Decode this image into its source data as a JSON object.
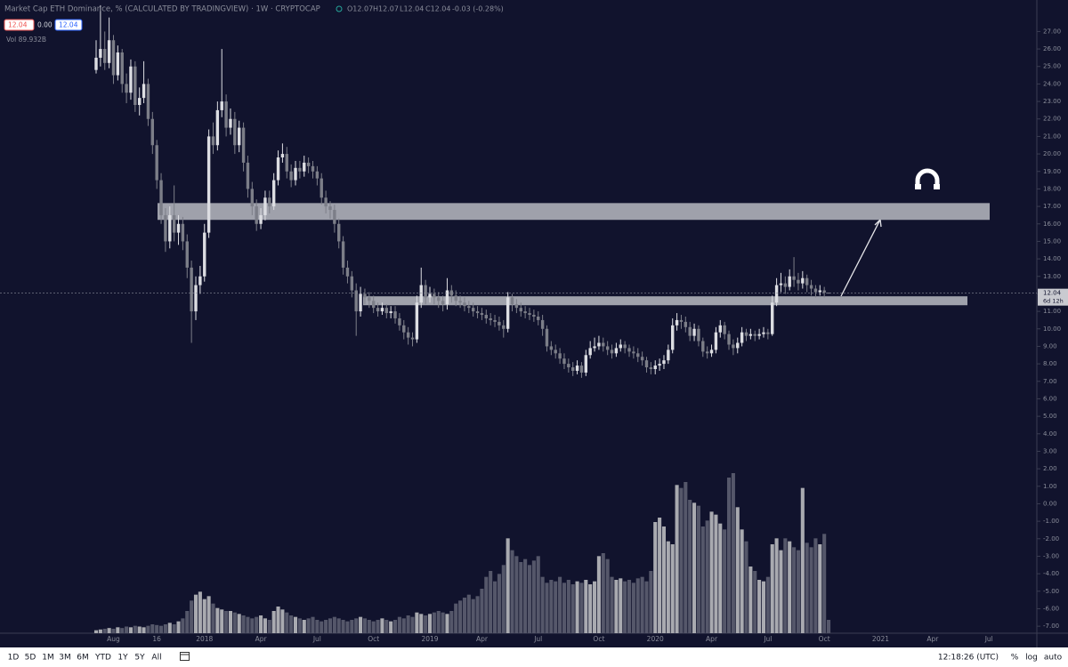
{
  "chart_data": {
    "type": "candlestick",
    "title": "Market Cap ETH Dominance, % (CALCULATED BY TRADINGVIEW) · 1W · CRYPTOCAP",
    "ohlc_legend": [
      "O12.07",
      "H12.07",
      "L12.04",
      "C12.04",
      "-0.03 (-0.28%)"
    ],
    "price_boxes": [
      "12.04",
      "0.00",
      "12.04"
    ],
    "volume_label": "Vol 89.932B",
    "last_price_countdown": "6d 12h",
    "categories": [
      null,
      null,
      null,
      null,
      "Aug",
      null,
      null,
      null,
      null,
      null,
      null,
      null,
      null,
      null,
      "16",
      null,
      null,
      null,
      null,
      null,
      null,
      null,
      null,
      null,
      null,
      "2018",
      null,
      null,
      null,
      null,
      null,
      null,
      null,
      null,
      null,
      null,
      null,
      null,
      "Apr",
      null,
      null,
      null,
      null,
      null,
      null,
      null,
      null,
      null,
      null,
      null,
      null,
      "Jul",
      null,
      null,
      null,
      null,
      null,
      null,
      null,
      null,
      null,
      null,
      null,
      null,
      "Oct",
      null,
      null,
      null,
      null,
      null,
      null,
      null,
      null,
      null,
      null,
      null,
      null,
      "2019",
      null,
      null,
      null,
      null,
      null,
      null,
      null,
      null,
      null,
      null,
      null,
      "Apr",
      null,
      null,
      null,
      null,
      null,
      null,
      null,
      null,
      null,
      null,
      null,
      null,
      "Jul",
      null,
      null,
      null,
      null,
      null,
      null,
      null,
      null,
      null,
      null,
      null,
      null,
      null,
      "Oct",
      null,
      null,
      null,
      null,
      null,
      null,
      null,
      null,
      null,
      null,
      null,
      null,
      "2020",
      null,
      null,
      null,
      null,
      null,
      null,
      null,
      null,
      null,
      null,
      null,
      null,
      "Apr",
      null,
      null,
      null,
      null,
      null,
      null,
      null,
      null,
      null,
      null,
      null,
      null,
      "Jul",
      null,
      null,
      null,
      null,
      null,
      null,
      null,
      null,
      null,
      null,
      null,
      null,
      "Oct",
      null,
      null,
      null,
      null,
      null,
      null,
      null,
      null,
      null,
      null,
      null,
      null,
      "2021",
      null,
      null,
      null,
      null,
      null,
      null,
      null,
      null,
      null,
      null,
      null,
      "Apr",
      null,
      null,
      null,
      null,
      null,
      null,
      null,
      null,
      null,
      null,
      null,
      null,
      "Jul",
      null,
      null,
      null
    ],
    "open": [
      24.8,
      25.5,
      26.0,
      25.2,
      26.5,
      24.5,
      25.8,
      24.0,
      23.5,
      25.0,
      22.8,
      23.2,
      24.0,
      22.0,
      20.5,
      18.5,
      16.5,
      15.0,
      16.5,
      15.5,
      16.0,
      15.0,
      13.5,
      11.0,
      12.5,
      13.0,
      15.5,
      21.0,
      20.5,
      22.5,
      23.0,
      21.5,
      22.0,
      20.5,
      21.5,
      19.5,
      18.0,
      17.0,
      16.0,
      16.5,
      17.5,
      17.0,
      18.5,
      19.8,
      20.0,
      19.0,
      18.5,
      19.2,
      19.0,
      19.5,
      19.3,
      19.0,
      18.6,
      17.5,
      17.0,
      16.8,
      16.0,
      15.0,
      13.5,
      13.0,
      12.2,
      11.0,
      12.0,
      11.8,
      11.6,
      11.2,
      11.0,
      11.2,
      10.9,
      11.0,
      10.6,
      10.2,
      9.8,
      9.5,
      9.4,
      11.5,
      12.5,
      11.8,
      12.0,
      11.8,
      11.6,
      11.4,
      12.2,
      11.9,
      11.6,
      11.5,
      11.3,
      11.2,
      11.0,
      10.9,
      10.8,
      10.6,
      10.5,
      10.4,
      10.2,
      10.0,
      11.8,
      11.4,
      11.2,
      11.0,
      10.9,
      10.8,
      10.7,
      10.5,
      10.0,
      9.0,
      8.8,
      8.6,
      8.3,
      8.0,
      7.8,
      7.6,
      7.9,
      7.5,
      8.5,
      8.9,
      9.0,
      9.2,
      9.0,
      8.8,
      8.6,
      8.9,
      9.1,
      8.9,
      8.7,
      8.6,
      8.4,
      8.2,
      7.8,
      7.7,
      7.9,
      8.0,
      8.2,
      8.8,
      10.2,
      10.5,
      10.4,
      10.1,
      9.6,
      10.0,
      9.3,
      8.7,
      8.6,
      8.8,
      9.8,
      10.2,
      9.7,
      9.1,
      8.9,
      9.2,
      9.8,
      9.6,
      9.7,
      9.6,
      9.7,
      9.8,
      9.7,
      11.5,
      12.5,
      12.6,
      12.4,
      13.0,
      12.8,
      12.6,
      12.9,
      12.5,
      12.3,
      12.1,
      12.2,
      12.07,
      null,
      null,
      null,
      null,
      null,
      null,
      null,
      null,
      null,
      null,
      null,
      null,
      null,
      null,
      null,
      null,
      null,
      null,
      null,
      null,
      null,
      null,
      null,
      null,
      null,
      null,
      null,
      null,
      null,
      null,
      null,
      null,
      null,
      null,
      null,
      null,
      null,
      null,
      null,
      null
    ],
    "high": [
      26.5,
      28.5,
      27.0,
      27.8,
      26.8,
      26.2,
      26.0,
      24.6,
      25.4,
      25.3,
      23.8,
      25.3,
      24.3,
      22.4,
      20.8,
      18.9,
      16.9,
      17.0,
      18.2,
      16.5,
      16.4,
      15.4,
      13.9,
      13.0,
      13.6,
      16.0,
      21.4,
      21.8,
      23.0,
      26.0,
      23.4,
      22.6,
      22.4,
      21.9,
      21.8,
      19.9,
      18.4,
      17.4,
      16.9,
      17.9,
      17.9,
      18.9,
      20.2,
      20.6,
      20.4,
      19.4,
      19.6,
      19.6,
      19.9,
      19.8,
      19.6,
      19.3,
      18.9,
      17.9,
      17.3,
      17.1,
      16.3,
      15.3,
      13.9,
      13.3,
      12.6,
      12.4,
      12.3,
      12.1,
      11.9,
      11.5,
      11.5,
      11.4,
      11.3,
      11.3,
      10.9,
      10.5,
      10.1,
      9.8,
      11.9,
      13.5,
      12.8,
      12.4,
      12.3,
      12.1,
      11.9,
      12.9,
      12.5,
      12.2,
      11.9,
      11.8,
      11.6,
      11.5,
      11.3,
      11.2,
      11.1,
      10.9,
      10.8,
      10.7,
      10.5,
      12.1,
      12.0,
      11.7,
      11.5,
      11.3,
      11.2,
      11.1,
      11.0,
      10.8,
      10.2,
      9.3,
      9.1,
      8.9,
      8.6,
      8.3,
      8.1,
      8.2,
      8.1,
      8.8,
      9.3,
      9.5,
      9.6,
      9.5,
      9.3,
      9.1,
      9.2,
      9.4,
      9.3,
      9.1,
      9.0,
      8.9,
      8.7,
      8.4,
      8.1,
      8.2,
      8.3,
      8.5,
      9.1,
      10.6,
      10.9,
      10.8,
      10.7,
      10.4,
      10.3,
      10.2,
      9.5,
      9.0,
      9.1,
      10.1,
      10.5,
      10.4,
      9.9,
      9.4,
      9.5,
      10.1,
      10.0,
      10.0,
      9.9,
      10.0,
      10.1,
      10.0,
      11.9,
      12.9,
      13.2,
      13.0,
      13.4,
      14.1,
      13.2,
      13.3,
      13.1,
      12.8,
      12.5,
      12.5,
      12.4,
      12.07,
      null,
      null,
      null,
      null,
      null,
      null,
      null,
      null,
      null,
      null,
      null,
      null,
      null,
      null,
      null,
      null,
      null,
      null,
      null,
      null,
      null,
      null,
      null,
      null,
      null,
      null,
      null,
      null,
      null,
      null,
      null,
      null,
      null,
      null,
      null,
      null,
      null,
      null,
      null,
      null
    ],
    "low": [
      24.6,
      25.0,
      24.8,
      24.9,
      24.0,
      24.2,
      23.5,
      22.9,
      23.1,
      22.4,
      22.2,
      22.9,
      21.6,
      20.0,
      18.0,
      16.0,
      14.4,
      14.6,
      15.0,
      14.8,
      14.5,
      12.9,
      9.2,
      10.5,
      12.0,
      12.7,
      15.2,
      20.0,
      20.2,
      22.1,
      21.0,
      21.1,
      20.0,
      20.1,
      19.0,
      17.5,
      16.5,
      15.6,
      15.7,
      16.2,
      16.6,
      16.8,
      18.2,
      19.5,
      18.6,
      18.1,
      18.2,
      18.6,
      18.7,
      18.9,
      18.6,
      18.2,
      17.1,
      16.6,
      16.3,
      15.5,
      14.6,
      13.1,
      12.6,
      11.8,
      9.6,
      10.7,
      11.4,
      11.2,
      10.9,
      10.7,
      10.8,
      10.6,
      10.6,
      10.3,
      9.9,
      9.4,
      9.1,
      9.0,
      9.2,
      11.2,
      11.4,
      11.5,
      11.4,
      11.2,
      11.0,
      11.1,
      11.5,
      11.3,
      11.2,
      11.0,
      10.9,
      10.7,
      10.6,
      10.5,
      10.3,
      10.2,
      10.1,
      9.9,
      9.5,
      9.8,
      11.0,
      10.9,
      10.7,
      10.6,
      10.5,
      10.4,
      10.2,
      9.6,
      8.7,
      8.5,
      8.3,
      8.0,
      7.7,
      7.5,
      7.3,
      7.4,
      7.2,
      7.3,
      8.3,
      8.7,
      8.8,
      8.7,
      8.5,
      8.3,
      8.4,
      8.7,
      8.6,
      8.4,
      8.3,
      8.1,
      7.9,
      7.5,
      7.4,
      7.4,
      7.6,
      7.7,
      8.0,
      8.6,
      9.9,
      10.0,
      9.8,
      9.3,
      9.3,
      9.0,
      8.4,
      8.3,
      8.4,
      8.6,
      9.5,
      9.4,
      8.8,
      8.5,
      8.6,
      9.0,
      9.3,
      9.4,
      9.3,
      9.4,
      9.5,
      9.4,
      9.6,
      11.3,
      12.1,
      12.0,
      12.2,
      12.4,
      12.2,
      12.3,
      12.1,
      11.9,
      11.8,
      11.9,
      11.8,
      12.04,
      null,
      null,
      null,
      null,
      null,
      null,
      null,
      null,
      null,
      null,
      null,
      null,
      null,
      null,
      null,
      null,
      null,
      null,
      null,
      null,
      null,
      null,
      null,
      null,
      null,
      null,
      null,
      null,
      null,
      null,
      null,
      null,
      null,
      null,
      null,
      null,
      null,
      null,
      null,
      null
    ],
    "close": [
      25.5,
      26.0,
      25.2,
      26.5,
      24.5,
      25.8,
      24.0,
      23.5,
      25.0,
      22.8,
      23.2,
      24.0,
      22.0,
      20.5,
      18.5,
      16.5,
      15.0,
      16.5,
      15.5,
      16.0,
      15.0,
      13.5,
      11.0,
      12.5,
      13.0,
      15.5,
      21.0,
      20.5,
      22.5,
      23.0,
      21.5,
      22.0,
      20.5,
      21.5,
      19.5,
      18.0,
      17.0,
      16.0,
      16.5,
      17.5,
      17.0,
      18.5,
      19.8,
      20.0,
      19.0,
      18.5,
      19.2,
      19.0,
      19.5,
      19.3,
      19.0,
      18.6,
      17.5,
      17.0,
      16.8,
      16.0,
      15.0,
      13.5,
      13.0,
      12.2,
      11.0,
      12.0,
      11.8,
      11.6,
      11.2,
      11.0,
      11.2,
      10.9,
      11.0,
      10.6,
      10.2,
      9.8,
      9.5,
      9.4,
      11.5,
      12.5,
      11.8,
      12.0,
      11.8,
      11.6,
      11.4,
      12.2,
      11.9,
      11.6,
      11.5,
      11.3,
      11.2,
      11.0,
      10.9,
      10.8,
      10.6,
      10.5,
      10.4,
      10.2,
      10.0,
      11.8,
      11.4,
      11.2,
      11.0,
      10.9,
      10.8,
      10.7,
      10.5,
      10.0,
      9.0,
      8.8,
      8.6,
      8.3,
      8.0,
      7.8,
      7.6,
      7.9,
      7.5,
      8.5,
      8.9,
      9.0,
      9.2,
      9.0,
      8.8,
      8.6,
      8.9,
      9.1,
      8.9,
      8.7,
      8.6,
      8.4,
      8.2,
      7.8,
      7.7,
      7.9,
      8.0,
      8.2,
      8.8,
      10.2,
      10.5,
      10.4,
      10.1,
      9.6,
      10.0,
      9.3,
      8.7,
      8.6,
      8.8,
      9.8,
      10.2,
      9.7,
      9.1,
      8.9,
      9.2,
      9.8,
      9.6,
      9.7,
      9.6,
      9.7,
      9.8,
      9.7,
      11.5,
      12.5,
      12.6,
      12.4,
      13.0,
      12.8,
      12.6,
      12.9,
      12.5,
      12.3,
      12.1,
      12.2,
      12.07,
      12.04,
      null,
      null,
      null,
      null,
      null,
      null,
      null,
      null,
      null,
      null,
      null,
      null,
      null,
      null,
      null,
      null,
      null,
      null,
      null,
      null,
      null,
      null,
      null,
      null,
      null,
      null,
      null,
      null,
      null,
      null,
      null,
      null,
      null,
      null,
      null,
      null,
      null,
      null,
      null,
      null
    ],
    "volume": [
      20,
      25,
      30,
      35,
      30,
      40,
      35,
      45,
      40,
      50,
      45,
      40,
      50,
      60,
      55,
      50,
      60,
      70,
      60,
      80,
      100,
      150,
      220,
      260,
      280,
      230,
      250,
      200,
      170,
      160,
      150,
      150,
      140,
      130,
      120,
      110,
      100,
      110,
      120,
      100,
      90,
      150,
      180,
      160,
      140,
      120,
      110,
      100,
      90,
      100,
      110,
      90,
      80,
      90,
      100,
      110,
      100,
      90,
      80,
      90,
      100,
      110,
      100,
      90,
      80,
      90,
      100,
      90,
      80,
      90,
      110,
      100,
      120,
      110,
      140,
      130,
      120,
      130,
      140,
      150,
      140,
      130,
      150,
      200,
      220,
      240,
      260,
      230,
      250,
      300,
      380,
      420,
      350,
      400,
      460,
      640,
      560,
      520,
      480,
      500,
      460,
      490,
      520,
      380,
      340,
      360,
      350,
      380,
      340,
      360,
      330,
      350,
      340,
      360,
      330,
      350,
      520,
      540,
      500,
      380,
      360,
      370,
      350,
      360,
      340,
      370,
      380,
      350,
      420,
      750,
      780,
      720,
      620,
      600,
      1000,
      980,
      1020,
      900,
      880,
      860,
      720,
      760,
      820,
      800,
      740,
      700,
      1050,
      1080,
      850,
      700,
      620,
      450,
      420,
      360,
      350,
      380,
      600,
      640,
      560,
      640,
      620,
      580,
      560,
      980,
      610,
      580,
      640,
      600,
      670,
      90,
      null,
      null,
      null,
      null,
      null,
      null,
      null,
      null,
      null,
      null,
      null,
      null,
      null,
      null,
      null,
      null,
      null,
      null,
      null,
      null,
      null,
      null,
      null,
      null,
      null,
      null,
      null,
      null,
      null,
      null,
      null,
      null,
      null,
      null,
      null,
      null,
      null,
      null,
      null,
      null
    ],
    "up_color": "#dcdde2",
    "down_color": "#7c7e88",
    "volume_up_color": "#a9aab0",
    "volume_down_color": "#55576a",
    "zones": [
      [
        16.23,
        17.19
      ],
      [
        11.35,
        11.86
      ]
    ],
    "zone_color": "#b9bbc2",
    "ylim": [
      -7.4,
      28.8
    ],
    "yticks": [
      {
        "value": -7,
        "label": "-7.00"
      },
      {
        "value": -6,
        "label": "-6.00"
      },
      {
        "value": -5,
        "label": "-5.00"
      },
      {
        "value": -4,
        "label": "-4.00"
      },
      {
        "value": -3,
        "label": "-3.00"
      },
      {
        "value": -2,
        "label": "-2.00"
      },
      {
        "value": -1,
        "label": "-1.00"
      },
      {
        "value": 0,
        "label": "0.00"
      },
      {
        "value": 1,
        "label": "1.00"
      },
      {
        "value": 2,
        "label": "2.00"
      },
      {
        "value": 3,
        "label": "3.00"
      },
      {
        "value": 4,
        "label": "4.00"
      },
      {
        "value": 5,
        "label": "5.00"
      },
      {
        "value": 6,
        "label": "6.00"
      },
      {
        "value": 7,
        "label": "7.00"
      },
      {
        "value": 8,
        "label": "8.00"
      },
      {
        "value": 9,
        "label": "9.00"
      },
      {
        "value": 10,
        "label": "10.00"
      },
      {
        "value": 11,
        "label": "11.00"
      },
      {
        "value": 12,
        "label": "12.00"
      },
      {
        "value": 13,
        "label": "13.00"
      },
      {
        "value": 14,
        "label": "14.00"
      },
      {
        "value": 15,
        "label": "15.00"
      },
      {
        "value": 16,
        "label": "16.00"
      },
      {
        "value": 17,
        "label": "17.00"
      },
      {
        "value": 18,
        "label": "18.00"
      },
      {
        "value": 19,
        "label": "19.00"
      },
      {
        "value": 20,
        "label": "20.00"
      },
      {
        "value": 21,
        "label": "21.00"
      },
      {
        "value": 22,
        "label": "22.00"
      },
      {
        "value": 23,
        "label": "23.00"
      },
      {
        "value": 24,
        "label": "24.00"
      },
      {
        "value": 25,
        "label": "25.00"
      },
      {
        "value": 26,
        "label": "26.00"
      },
      {
        "value": 27,
        "label": "27.00"
      }
    ]
  },
  "toolbar": {
    "ranges": [
      "1D",
      "5D",
      "1M",
      "3M",
      "6M",
      "YTD",
      "1Y",
      "5Y",
      "All"
    ],
    "clock": "12:18:26 (UTC)",
    "scale_options": [
      "%",
      "log",
      "auto"
    ]
  }
}
